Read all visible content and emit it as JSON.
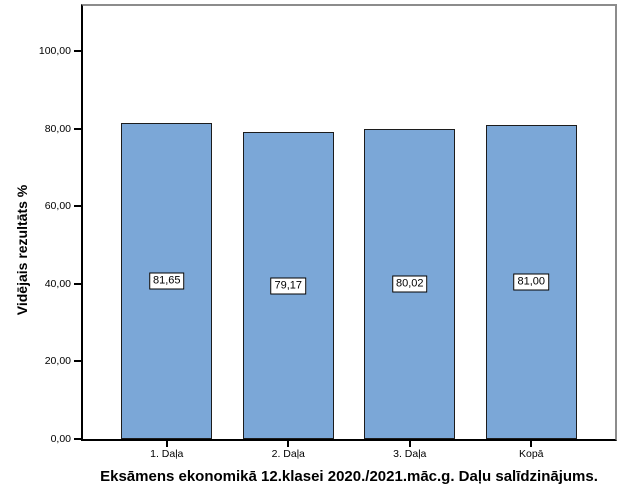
{
  "chart_data": {
    "type": "bar",
    "categories": [
      "1. Daļa",
      "2. Daļa",
      "3. Daļa",
      "Kopā"
    ],
    "values": [
      81.65,
      79.17,
      80.02,
      81.0
    ],
    "value_labels": [
      "81,65",
      "79,17",
      "80,02",
      "81,00"
    ],
    "title": "",
    "xlabel": "Eksāmens ekonomikā 12.klasei 2020./2021.māc.g. Daļu salīdzinājums.",
    "ylabel": "Vidējais rezultāts %",
    "ylim": [
      0,
      111.7
    ],
    "yticks": [
      0,
      20,
      40,
      60,
      80,
      100
    ],
    "ytick_labels": [
      "0,00",
      "20,00",
      "40,00",
      "60,00",
      "80,00",
      "100,00"
    ],
    "grid": false,
    "legend": "none",
    "bar_color": "#7BA7D7",
    "bar_border_color": "#1C1C1C",
    "axis_color": "#000000",
    "frame_color": "#8C8C8C"
  }
}
